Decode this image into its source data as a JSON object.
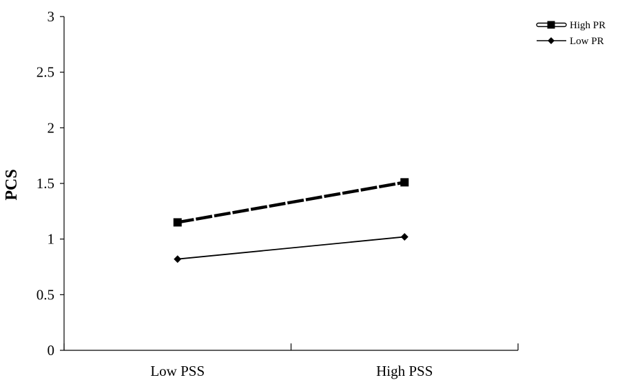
{
  "chart_data": {
    "type": "line",
    "title": "",
    "xlabel": "",
    "ylabel": "PCS",
    "categories": [
      "Low PSS",
      "High PSS"
    ],
    "ylim": [
      0,
      3
    ],
    "yticks": [
      "0",
      "0.5",
      "1",
      "1.5",
      "2",
      "2.5",
      "3"
    ],
    "grid": false,
    "legend_position": "top-right",
    "series": [
      {
        "name": "High PR",
        "values": [
          1.15,
          1.51
        ],
        "marker": "square",
        "line_style": "dashed",
        "color": "#000000"
      },
      {
        "name": "Low PR",
        "values": [
          0.82,
          1.02
        ],
        "marker": "diamond",
        "line_style": "solid",
        "color": "#000000"
      }
    ]
  }
}
